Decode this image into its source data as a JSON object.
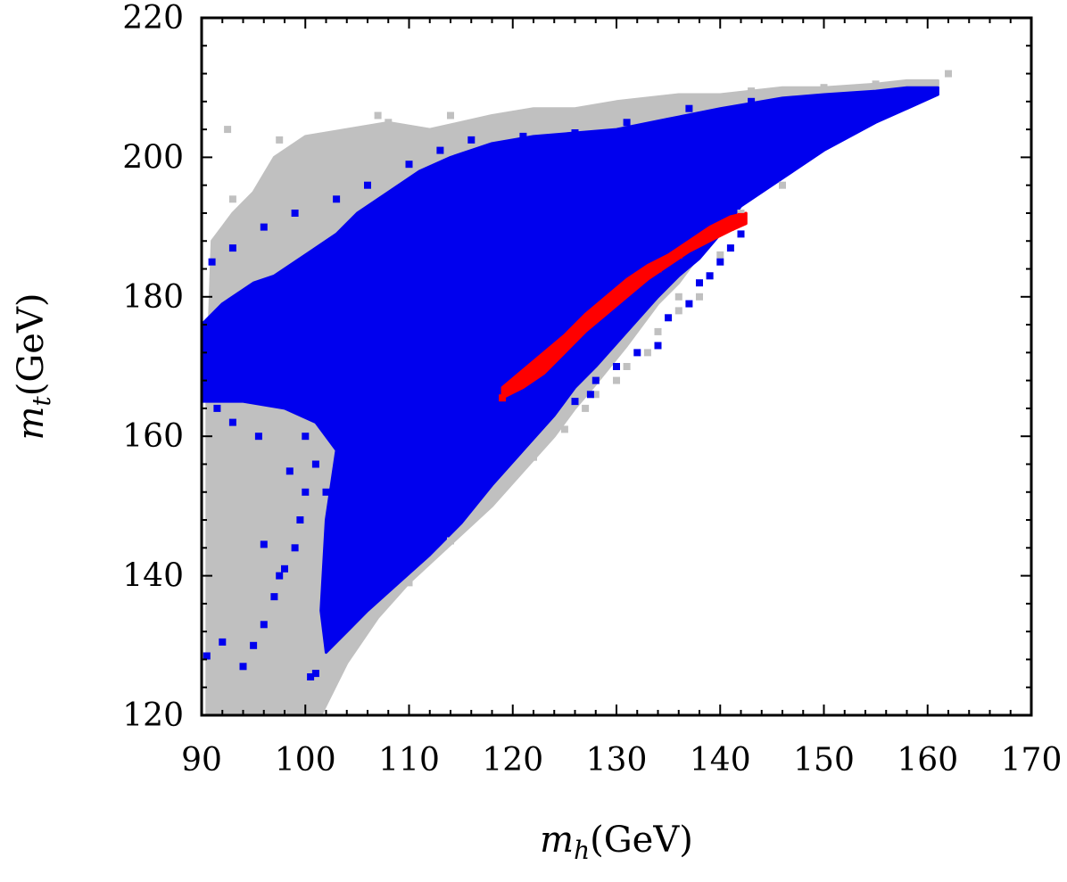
{
  "colors": {
    "gray_region": "#c0c0c0",
    "blue_region": "#0000ee",
    "red_region": "#ff0000",
    "frame": "#000000"
  },
  "chart_data": {
    "type": "scatter",
    "title": "",
    "xlabel": "m_h(GeV)",
    "ylabel": "m_t(GeV)",
    "xlabel_var": "m",
    "xlabel_sub": "h",
    "xlabel_unit": "(GeV)",
    "ylabel_var": "m",
    "ylabel_sub": "t",
    "ylabel_unit": "(GeV)",
    "xlim": [
      90,
      170
    ],
    "ylim": [
      120,
      220
    ],
    "x_ticks": [
      90,
      100,
      110,
      120,
      130,
      140,
      150,
      160,
      170
    ],
    "y_ticks": [
      120,
      140,
      160,
      180,
      200,
      220
    ],
    "grid": false,
    "legend": "none",
    "series": [
      {
        "color": "#c0c0c0",
        "upper": [
          [
            90.5,
            166
          ],
          [
            91,
            188
          ],
          [
            92,
            190
          ],
          [
            93,
            192
          ],
          [
            95,
            195
          ],
          [
            97,
            200
          ],
          [
            100,
            203
          ],
          [
            104,
            204
          ],
          [
            108,
            205
          ],
          [
            112,
            204
          ],
          [
            115,
            205
          ],
          [
            118,
            206
          ],
          [
            122,
            207
          ],
          [
            126,
            207
          ],
          [
            130,
            208
          ],
          [
            136,
            209
          ],
          [
            140,
            209
          ],
          [
            146,
            210
          ],
          [
            150,
            210
          ],
          [
            155,
            210.5
          ],
          [
            158,
            211
          ],
          [
            161,
            211
          ]
        ],
        "lower": [
          [
            161,
            210
          ],
          [
            158,
            209
          ],
          [
            155,
            207
          ],
          [
            150,
            203
          ],
          [
            146,
            199
          ],
          [
            142,
            194
          ],
          [
            140,
            190
          ],
          [
            138,
            186
          ],
          [
            136,
            182
          ],
          [
            134,
            179
          ],
          [
            131,
            173
          ],
          [
            128,
            167.5
          ],
          [
            126,
            164
          ],
          [
            124,
            160
          ],
          [
            121,
            155
          ],
          [
            118,
            150
          ],
          [
            114,
            144.5
          ],
          [
            110,
            139
          ],
          [
            107,
            134
          ],
          [
            104,
            127.5
          ],
          [
            101.5,
            120
          ],
          [
            90.5,
            120
          ]
        ],
        "scatter": [
          [
            92.5,
            204
          ],
          [
            93,
            194
          ],
          [
            97.5,
            202.5
          ],
          [
            99,
            201
          ],
          [
            101,
            198
          ],
          [
            103,
            199
          ],
          [
            107,
            206
          ],
          [
            108,
            205
          ],
          [
            114,
            206
          ],
          [
            118,
            203.5
          ],
          [
            124,
            205
          ],
          [
            128,
            206.5
          ],
          [
            133,
            207
          ],
          [
            137,
            208
          ],
          [
            143,
            209.5
          ],
          [
            150,
            210
          ],
          [
            155,
            210.5
          ],
          [
            162,
            212
          ],
          [
            146,
            196
          ],
          [
            142,
            192
          ],
          [
            140,
            186
          ],
          [
            138,
            180
          ],
          [
            136,
            178
          ],
          [
            134,
            175
          ],
          [
            131,
            170
          ],
          [
            128,
            166
          ],
          [
            125,
            161
          ],
          [
            122,
            157
          ],
          [
            118,
            151
          ],
          [
            114,
            145
          ],
          [
            110,
            139
          ],
          [
            96,
            190.5
          ],
          [
            95.5,
            188
          ],
          [
            100,
            188
          ],
          [
            98,
            186
          ],
          [
            139,
            183
          ],
          [
            136,
            180
          ],
          [
            133,
            172
          ],
          [
            130,
            168
          ],
          [
            127,
            164
          ]
        ]
      },
      {
        "color": "#0000ee",
        "upper": [
          [
            90,
            176
          ],
          [
            92,
            179
          ],
          [
            95,
            182
          ],
          [
            97,
            183
          ],
          [
            100,
            186
          ],
          [
            103,
            189
          ],
          [
            105,
            192
          ],
          [
            108,
            195
          ],
          [
            111,
            198
          ],
          [
            114,
            200
          ],
          [
            118,
            202
          ],
          [
            122,
            203
          ],
          [
            126,
            203.5
          ],
          [
            130,
            204
          ],
          [
            135,
            205.5
          ],
          [
            140,
            207
          ],
          [
            146,
            208.5
          ],
          [
            150,
            209
          ],
          [
            155,
            209.5
          ],
          [
            158,
            210
          ],
          [
            161,
            210
          ]
        ],
        "lower": [
          [
            161,
            209
          ],
          [
            158,
            207
          ],
          [
            155,
            205
          ],
          [
            150,
            201
          ],
          [
            146,
            197
          ],
          [
            142,
            193
          ],
          [
            140,
            189
          ],
          [
            138,
            185.5
          ],
          [
            136,
            183
          ],
          [
            134,
            180
          ],
          [
            131,
            175
          ],
          [
            128,
            170
          ],
          [
            126,
            167
          ],
          [
            124,
            163
          ],
          [
            121,
            158
          ],
          [
            118,
            153
          ],
          [
            115,
            147.5
          ],
          [
            112,
            143
          ],
          [
            109,
            139
          ],
          [
            106,
            135
          ],
          [
            104,
            132
          ],
          [
            102,
            129
          ],
          [
            101.5,
            135
          ],
          [
            102,
            148
          ],
          [
            103,
            158
          ],
          [
            101,
            162
          ],
          [
            98,
            164
          ],
          [
            94,
            165
          ],
          [
            90,
            165
          ]
        ],
        "scatter": [
          [
            91,
            185
          ],
          [
            93,
            187
          ],
          [
            96,
            190
          ],
          [
            99,
            192
          ],
          [
            103,
            194
          ],
          [
            106,
            196
          ],
          [
            110,
            199
          ],
          [
            113,
            201
          ],
          [
            116,
            202.5
          ],
          [
            121,
            203
          ],
          [
            126,
            203.5
          ],
          [
            131,
            205
          ],
          [
            137,
            207
          ],
          [
            143,
            208
          ],
          [
            94,
            172
          ],
          [
            96,
            170
          ],
          [
            98,
            168
          ],
          [
            99,
            166
          ],
          [
            100,
            160
          ],
          [
            101,
            156
          ],
          [
            102,
            152
          ],
          [
            99,
            144
          ],
          [
            98,
            141
          ],
          [
            97,
            137
          ],
          [
            96,
            133
          ],
          [
            95,
            130
          ],
          [
            94,
            127
          ],
          [
            92,
            130.5
          ],
          [
            90.5,
            128.5
          ],
          [
            101,
            126
          ],
          [
            100.5,
            125.5
          ],
          [
            96,
            144.5
          ],
          [
            97.5,
            140
          ],
          [
            99.5,
            148
          ],
          [
            100,
            152
          ],
          [
            98.5,
            155
          ],
          [
            95.5,
            160
          ],
          [
            93,
            162
          ],
          [
            91.5,
            164
          ],
          [
            105,
            147
          ],
          [
            106,
            151
          ],
          [
            107,
            156
          ],
          [
            104.5,
            141
          ],
          [
            103.5,
            138
          ],
          [
            102.5,
            131
          ],
          [
            130,
            170
          ],
          [
            132,
            172
          ],
          [
            135,
            177
          ],
          [
            137,
            179
          ],
          [
            140,
            185
          ],
          [
            142,
            189
          ],
          [
            128,
            168
          ],
          [
            126,
            165
          ],
          [
            134,
            173
          ],
          [
            138,
            182
          ],
          [
            141,
            187
          ],
          [
            127.5,
            166
          ],
          [
            139,
            183
          ]
        ]
      },
      {
        "color": "#ff0000",
        "upper": [
          [
            119,
            167
          ],
          [
            121,
            169.5
          ],
          [
            123,
            172
          ],
          [
            125,
            174.5
          ],
          [
            127,
            177.5
          ],
          [
            129,
            180
          ],
          [
            131,
            182.5
          ],
          [
            133,
            184.5
          ],
          [
            135,
            186
          ],
          [
            137,
            188
          ],
          [
            139,
            190
          ],
          [
            141,
            191.5
          ],
          [
            142.5,
            192
          ]
        ],
        "lower": [
          [
            142.5,
            190.5
          ],
          [
            141,
            189.5
          ],
          [
            139,
            188
          ],
          [
            137,
            186.5
          ],
          [
            135,
            184.5
          ],
          [
            133,
            182.5
          ],
          [
            131,
            180
          ],
          [
            129,
            177.5
          ],
          [
            127,
            175
          ],
          [
            125,
            172
          ],
          [
            123,
            169
          ],
          [
            121,
            167
          ],
          [
            119,
            165.5
          ]
        ],
        "scatter": [
          [
            119,
            165.5
          ],
          [
            119.5,
            166.5
          ],
          [
            142,
            191.5
          ],
          [
            141,
            190
          ],
          [
            139.5,
            189
          ],
          [
            120.5,
            167.5
          ],
          [
            122,
            169
          ],
          [
            124,
            171.5
          ],
          [
            126,
            174.5
          ],
          [
            128,
            177
          ],
          [
            130,
            180
          ],
          [
            132,
            182
          ],
          [
            134,
            184
          ],
          [
            136,
            186
          ],
          [
            138,
            188
          ]
        ]
      }
    ]
  }
}
